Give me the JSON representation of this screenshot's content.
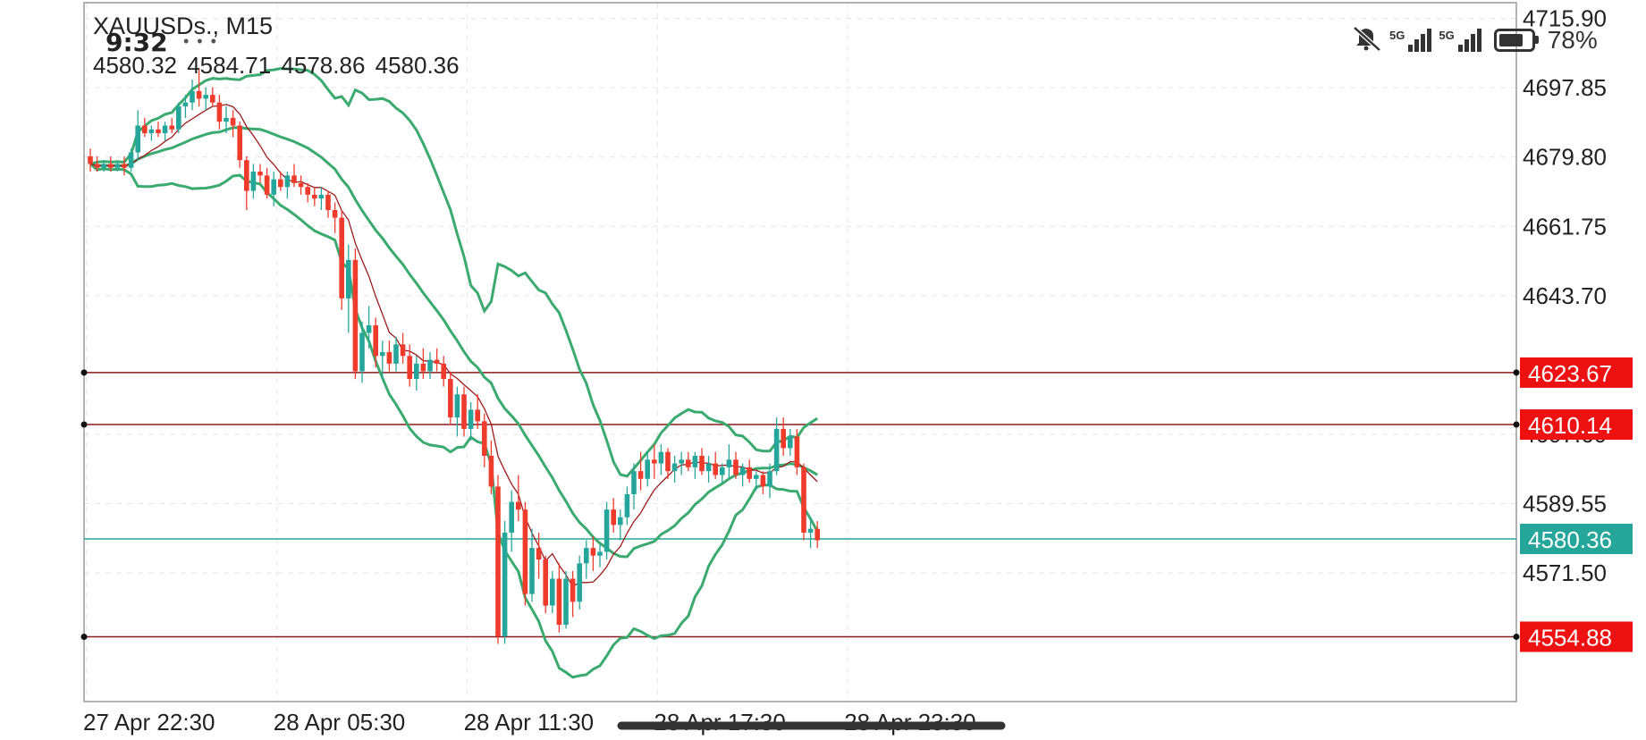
{
  "header": {
    "symbol": "XAUUSDs., M15",
    "ohlc": "4580.32 4584.71 4578.86 4580.36"
  },
  "status_bar": {
    "time": "9:32",
    "dots": "• • •",
    "network_1": "5G",
    "network_2": "5G",
    "battery_percent": "78%",
    "battery_level": 0.78,
    "icons": [
      "mute-icon",
      "signal-icon",
      "signal-icon",
      "battery-icon"
    ]
  },
  "colors": {
    "bull": "#26a69a",
    "bear": "#ef3b2c",
    "bollinger": "#3aaa6e",
    "ma": "#9b1b1b",
    "level_line": "#8b1a1a",
    "level_label_bg": "#ee1111",
    "current_label_bg": "#26a69a",
    "grid": "#e6e6e6"
  },
  "chart_data": {
    "type": "candlestick",
    "title": "XAUUSDs., M15",
    "ylim": [
      4538,
      4720
    ],
    "y_ticks": [
      "4715.90",
      "4697.85",
      "4679.80",
      "4661.75",
      "4643.70",
      "4607.60",
      "4589.55",
      "4571.50"
    ],
    "x_ticks": [
      "27 Apr 22:30",
      "28 Apr 05:30",
      "28 Apr 11:30",
      "28 Apr 17:30",
      "28 Apr 23:30"
    ],
    "x_tick_index": [
      0,
      28,
      56,
      84,
      112
    ],
    "levels": [
      {
        "value": 4623.67,
        "label": "4623.67"
      },
      {
        "value": 4610.14,
        "label": "4610.14"
      },
      {
        "value": 4554.88,
        "label": "4554.88"
      }
    ],
    "current_price": {
      "value": 4580.36,
      "label": "4580.36"
    },
    "candles": [
      [
        4680,
        4682,
        4676,
        4678
      ],
      [
        4678,
        4680,
        4676,
        4677
      ],
      [
        4677,
        4679,
        4676,
        4678
      ],
      [
        4678,
        4680,
        4676,
        4677
      ],
      [
        4677,
        4679,
        4676,
        4678
      ],
      [
        4678,
        4680,
        4675,
        4677
      ],
      [
        4677,
        4682,
        4676,
        4681
      ],
      [
        4681,
        4692,
        4679,
        4688
      ],
      [
        4688,
        4690,
        4685,
        4686
      ],
      [
        4686,
        4688,
        4684,
        4687
      ],
      [
        4687,
        4689,
        4685,
        4686
      ],
      [
        4686,
        4689,
        4684,
        4688
      ],
      [
        4688,
        4690,
        4686,
        4687
      ],
      [
        4687,
        4694,
        4686,
        4693
      ],
      [
        4693,
        4696,
        4690,
        4694
      ],
      [
        4694,
        4700,
        4692,
        4697
      ],
      [
        4697,
        4703,
        4693,
        4695
      ],
      [
        4695,
        4698,
        4692,
        4696
      ],
      [
        4696,
        4698,
        4693,
        4694
      ],
      [
        4694,
        4696,
        4687,
        4689
      ],
      [
        4689,
        4693,
        4686,
        4690
      ],
      [
        4690,
        4692,
        4685,
        4688
      ],
      [
        4688,
        4689,
        4677,
        4679
      ],
      [
        4679,
        4680,
        4666,
        4671
      ],
      [
        4671,
        4678,
        4669,
        4676
      ],
      [
        4676,
        4678,
        4673,
        4675
      ],
      [
        4675,
        4677,
        4669,
        4670
      ],
      [
        4670,
        4676,
        4667,
        4674
      ],
      [
        4674,
        4676,
        4671,
        4672
      ],
      [
        4672,
        4676,
        4669,
        4675
      ],
      [
        4675,
        4678,
        4672,
        4673
      ],
      [
        4673,
        4675,
        4670,
        4672
      ],
      [
        4672,
        4673,
        4668,
        4670
      ],
      [
        4670,
        4672,
        4667,
        4669
      ],
      [
        4669,
        4672,
        4666,
        4670
      ],
      [
        4670,
        4671,
        4664,
        4666
      ],
      [
        4666,
        4668,
        4660,
        4664
      ],
      [
        4664,
        4666,
        4640,
        4643
      ],
      [
        4643,
        4657,
        4634,
        4653
      ],
      [
        4653,
        4656,
        4622,
        4624
      ],
      [
        4624,
        4637,
        4621,
        4634
      ],
      [
        4634,
        4641,
        4630,
        4636
      ],
      [
        4636,
        4638,
        4625,
        4628
      ],
      [
        4628,
        4632,
        4622,
        4629
      ],
      [
        4629,
        4632,
        4624,
        4626
      ],
      [
        4626,
        4633,
        4624,
        4631
      ],
      [
        4631,
        4634,
        4626,
        4628
      ],
      [
        4628,
        4631,
        4620,
        4622
      ],
      [
        4622,
        4628,
        4619,
        4626
      ],
      [
        4626,
        4630,
        4622,
        4624
      ],
      [
        4624,
        4629,
        4622,
        4627
      ],
      [
        4627,
        4630,
        4624,
        4626
      ],
      [
        4626,
        4628,
        4620,
        4622
      ],
      [
        4622,
        4624,
        4610,
        4612
      ],
      [
        4612,
        4620,
        4607,
        4618
      ],
      [
        4618,
        4620,
        4607,
        4609
      ],
      [
        4609,
        4616,
        4606,
        4614
      ],
      [
        4614,
        4618,
        4609,
        4611
      ],
      [
        4611,
        4613,
        4599,
        4602
      ],
      [
        4602,
        4606,
        4592,
        4594
      ],
      [
        4594,
        4597,
        4553,
        4555
      ],
      [
        4555,
        4585,
        4553,
        4582
      ],
      [
        4582,
        4593,
        4577,
        4590
      ],
      [
        4590,
        4597,
        4585,
        4588
      ],
      [
        4588,
        4590,
        4563,
        4566
      ],
      [
        4566,
        4583,
        4564,
        4578
      ],
      [
        4578,
        4582,
        4570,
        4575
      ],
      [
        4575,
        4576,
        4561,
        4563
      ],
      [
        4563,
        4572,
        4561,
        4570
      ],
      [
        4570,
        4574,
        4556,
        4558
      ],
      [
        4558,
        4572,
        4557,
        4570
      ],
      [
        4570,
        4572,
        4560,
        4564
      ],
      [
        4564,
        4576,
        4562,
        4574
      ],
      [
        4574,
        4580,
        4570,
        4578
      ],
      [
        4578,
        4581,
        4572,
        4576
      ],
      [
        4576,
        4579,
        4573,
        4577
      ],
      [
        4577,
        4590,
        4575,
        4588
      ],
      [
        4588,
        4591,
        4582,
        4584
      ],
      [
        4584,
        4588,
        4580,
        4586
      ],
      [
        4586,
        4594,
        4584,
        4592
      ],
      [
        4592,
        4600,
        4588,
        4598
      ],
      [
        4598,
        4603,
        4593,
        4596
      ],
      [
        4596,
        4603,
        4594,
        4601
      ],
      [
        4601,
        4605,
        4596,
        4600
      ],
      [
        4600,
        4605,
        4597,
        4603
      ],
      [
        4603,
        4604,
        4596,
        4598
      ],
      [
        4598,
        4602,
        4595,
        4600
      ],
      [
        4600,
        4603,
        4597,
        4601
      ],
      [
        4601,
        4603,
        4598,
        4599
      ],
      [
        4599,
        4603,
        4596,
        4602
      ],
      [
        4602,
        4604,
        4597,
        4598
      ],
      [
        4598,
        4602,
        4595,
        4600
      ],
      [
        4600,
        4603,
        4596,
        4597
      ],
      [
        4597,
        4600,
        4595,
        4599
      ],
      [
        4599,
        4605,
        4596,
        4601
      ],
      [
        4601,
        4603,
        4596,
        4597
      ],
      [
        4597,
        4600,
        4594,
        4599
      ],
      [
        4599,
        4601,
        4595,
        4596
      ],
      [
        4596,
        4598,
        4593,
        4597
      ],
      [
        4597,
        4598,
        4592,
        4594
      ],
      [
        4594,
        4600,
        4591,
        4598
      ],
      [
        4598,
        4612,
        4597,
        4609
      ],
      [
        4609,
        4612,
        4602,
        4604
      ],
      [
        4604,
        4609,
        4602,
        4607
      ],
      [
        4607,
        4609,
        4597,
        4599
      ],
      [
        4599,
        4600,
        4580,
        4582
      ],
      [
        4582,
        4586,
        4578,
        4583
      ],
      [
        4583,
        4585,
        4578,
        4580
      ]
    ],
    "indicators": [
      "Bollinger Bands",
      "Moving Average"
    ]
  }
}
